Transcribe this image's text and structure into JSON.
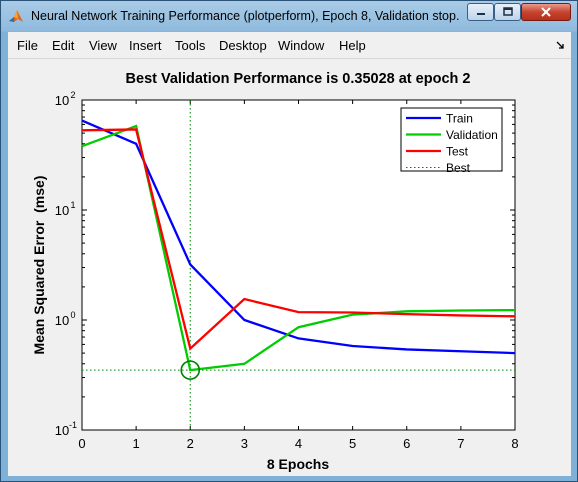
{
  "window": {
    "title": "Neural Network Training Performance (plotperform), Epoch 8, Validation stop."
  },
  "menu": [
    "File",
    "Edit",
    "View",
    "Insert",
    "Tools",
    "Desktop",
    "Window",
    "Help"
  ],
  "colors": {
    "train": "#0000ff",
    "validation": "#00cc00",
    "test": "#ff0000",
    "best": "#008000"
  },
  "chart_data": {
    "type": "line",
    "title": "Best Validation Performance is 0.35028 at epoch 2",
    "xlabel": "8 Epochs",
    "ylabel": "Mean Squared Error  (mse)",
    "yscale": "log",
    "xlim": [
      0,
      8
    ],
    "ylim": [
      0.1,
      100
    ],
    "x": [
      0,
      1,
      2,
      3,
      4,
      5,
      6,
      7,
      8
    ],
    "xticks": [
      "0",
      "1",
      "2",
      "3",
      "4",
      "5",
      "6",
      "7",
      "8"
    ],
    "yticks": [
      {
        "base": "10",
        "exp": "-1",
        "value": 0.1
      },
      {
        "base": "10",
        "exp": "0",
        "value": 1
      },
      {
        "base": "10",
        "exp": "1",
        "value": 10
      },
      {
        "base": "10",
        "exp": "2",
        "value": 100
      }
    ],
    "series": [
      {
        "name": "Train",
        "color": "#0000ff",
        "values": [
          65,
          40,
          3.2,
          1.0,
          0.68,
          0.58,
          0.54,
          0.52,
          0.5
        ]
      },
      {
        "name": "Validation",
        "color": "#00cc00",
        "values": [
          38,
          58,
          0.35028,
          0.4,
          0.86,
          1.12,
          1.2,
          1.22,
          1.23
        ]
      },
      {
        "name": "Test",
        "color": "#ff0000",
        "values": [
          53,
          54,
          0.55,
          1.55,
          1.18,
          1.17,
          1.13,
          1.1,
          1.08
        ]
      }
    ],
    "best": {
      "name": "Best",
      "epoch": 2,
      "value": 0.35028,
      "style": "dotted"
    },
    "legend": {
      "position": "top-right",
      "entries": [
        "Train",
        "Validation",
        "Test",
        "Best"
      ]
    },
    "grid": false
  }
}
